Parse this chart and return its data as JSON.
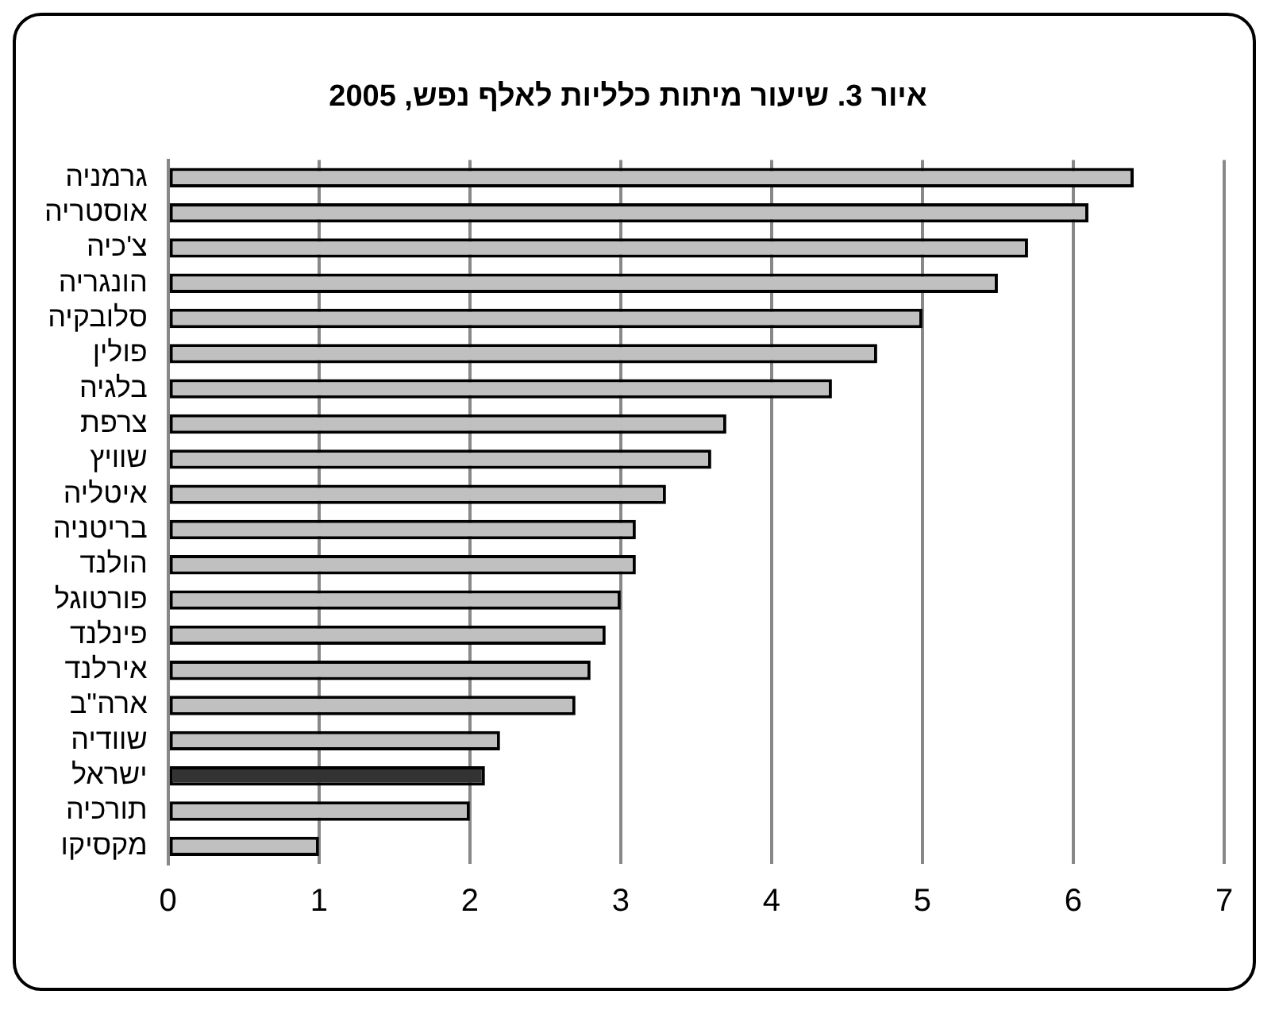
{
  "chart_data": {
    "type": "bar",
    "orientation": "horizontal",
    "title": "איור 3. שיעור מיתות כלליות לאלף נפש, 2005",
    "categories": [
      "גרמניה",
      "אוסטריה",
      "צ'כיה",
      "הונגריה",
      "סלובקיה",
      "פולין",
      "בלגיה",
      "צרפת",
      "שוויץ",
      "איטליה",
      "בריטניה",
      "הולנד",
      "פורטוגל",
      "פינלנד",
      "אירלנד",
      "ארה\"ב",
      "שוודיה",
      "ישראל",
      "תורכיה",
      "מקסיקו"
    ],
    "values": [
      6.4,
      6.1,
      5.7,
      5.5,
      5.0,
      4.7,
      4.4,
      3.7,
      3.6,
      3.3,
      3.1,
      3.1,
      3.0,
      2.9,
      2.8,
      2.7,
      2.2,
      2.1,
      2.0,
      1.0
    ],
    "colors": [
      "#c0c0c0",
      "#c0c0c0",
      "#c0c0c0",
      "#c0c0c0",
      "#c0c0c0",
      "#c0c0c0",
      "#c0c0c0",
      "#c0c0c0",
      "#c0c0c0",
      "#c0c0c0",
      "#c0c0c0",
      "#c0c0c0",
      "#c0c0c0",
      "#c0c0c0",
      "#c0c0c0",
      "#c0c0c0",
      "#c0c0c0",
      "#333333",
      "#c0c0c0",
      "#c0c0c0"
    ],
    "xlim": [
      0,
      7
    ],
    "xticks": [
      0,
      1,
      2,
      3,
      4,
      5,
      6,
      7
    ],
    "grid": "x",
    "legend": false
  }
}
